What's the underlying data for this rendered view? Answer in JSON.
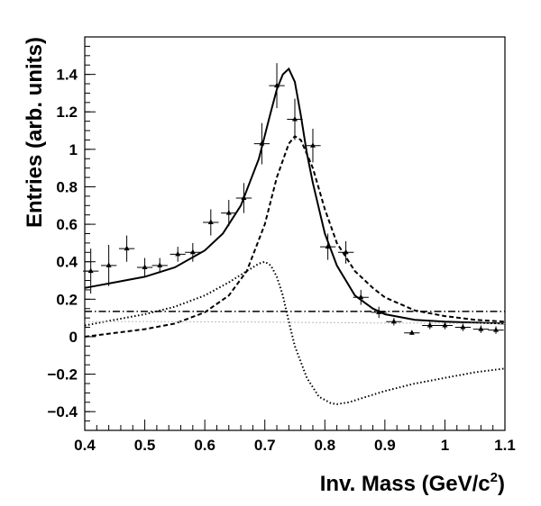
{
  "chart_data": {
    "type": "scatter",
    "title": "",
    "xlabel_main": "Inv. Mass (GeV/c",
    "xlabel_sup": "2",
    "xlabel_close": ")",
    "ylabel": "Entries (arb. units)",
    "xlim": [
      0.4,
      1.1
    ],
    "ylim": [
      -0.5,
      1.6
    ],
    "x_ticks": [
      0.4,
      0.5,
      0.6,
      0.7,
      0.8,
      0.9,
      1.0,
      1.1
    ],
    "x_tick_labels": [
      "0.4",
      "0.5",
      "0.6",
      "0.7",
      "0.8",
      "0.9",
      "1",
      "1.1"
    ],
    "y_ticks": [
      -0.4,
      -0.2,
      0,
      0.2,
      0.4,
      0.6,
      0.8,
      1.0,
      1.2,
      1.4
    ],
    "y_tick_labels": [
      "−0.4",
      "−0.2",
      "0",
      "0.2",
      "0.4",
      "0.6",
      "0.8",
      "1",
      "1.2",
      "1.4"
    ],
    "grid": false,
    "legend": "none",
    "data_points": [
      {
        "x": 0.41,
        "y": 0.35,
        "xerr": 0.013,
        "yerr": 0.12
      },
      {
        "x": 0.44,
        "y": 0.38,
        "xerr": 0.013,
        "yerr": 0.11
      },
      {
        "x": 0.47,
        "y": 0.47,
        "xerr": 0.013,
        "yerr": 0.07
      },
      {
        "x": 0.5,
        "y": 0.37,
        "xerr": 0.013,
        "yerr": 0.05
      },
      {
        "x": 0.525,
        "y": 0.38,
        "xerr": 0.013,
        "yerr": 0.04
      },
      {
        "x": 0.555,
        "y": 0.44,
        "xerr": 0.013,
        "yerr": 0.04
      },
      {
        "x": 0.58,
        "y": 0.45,
        "xerr": 0.013,
        "yerr": 0.05
      },
      {
        "x": 0.61,
        "y": 0.61,
        "xerr": 0.013,
        "yerr": 0.07
      },
      {
        "x": 0.64,
        "y": 0.66,
        "xerr": 0.013,
        "yerr": 0.07
      },
      {
        "x": 0.665,
        "y": 0.74,
        "xerr": 0.013,
        "yerr": 0.08
      },
      {
        "x": 0.695,
        "y": 1.03,
        "xerr": 0.013,
        "yerr": 0.11
      },
      {
        "x": 0.72,
        "y": 1.34,
        "xerr": 0.013,
        "yerr": 0.12
      },
      {
        "x": 0.75,
        "y": 1.16,
        "xerr": 0.013,
        "yerr": 0.11
      },
      {
        "x": 0.78,
        "y": 1.02,
        "xerr": 0.013,
        "yerr": 0.09
      },
      {
        "x": 0.805,
        "y": 0.48,
        "xerr": 0.013,
        "yerr": 0.07
      },
      {
        "x": 0.835,
        "y": 0.45,
        "xerr": 0.013,
        "yerr": 0.06
      },
      {
        "x": 0.86,
        "y": 0.21,
        "xerr": 0.013,
        "yerr": 0.04
      },
      {
        "x": 0.89,
        "y": 0.13,
        "xerr": 0.013,
        "yerr": 0.03
      },
      {
        "x": 0.915,
        "y": 0.08,
        "xerr": 0.013,
        "yerr": 0.02
      },
      {
        "x": 0.945,
        "y": 0.02,
        "xerr": 0.013,
        "yerr": 0.01
      },
      {
        "x": 0.975,
        "y": 0.06,
        "xerr": 0.013,
        "yerr": 0.02
      },
      {
        "x": 1.0,
        "y": 0.06,
        "xerr": 0.013,
        "yerr": 0.02
      },
      {
        "x": 1.03,
        "y": 0.05,
        "xerr": 0.013,
        "yerr": 0.02
      },
      {
        "x": 1.06,
        "y": 0.04,
        "xerr": 0.013,
        "yerr": 0.02
      },
      {
        "x": 1.085,
        "y": 0.035,
        "xerr": 0.013,
        "yerr": 0.02
      }
    ],
    "curves": [
      {
        "style": "solid",
        "x": [
          0.4,
          0.45,
          0.5,
          0.55,
          0.6,
          0.63,
          0.66,
          0.69,
          0.71,
          0.72,
          0.73,
          0.74,
          0.75,
          0.76,
          0.77,
          0.78,
          0.8,
          0.82,
          0.85,
          0.88,
          0.9,
          0.95,
          1.0,
          1.05,
          1.1
        ],
        "y": [
          0.26,
          0.29,
          0.32,
          0.37,
          0.46,
          0.55,
          0.7,
          0.95,
          1.2,
          1.32,
          1.4,
          1.43,
          1.36,
          1.18,
          0.98,
          0.82,
          0.55,
          0.38,
          0.22,
          0.15,
          0.12,
          0.09,
          0.08,
          0.075,
          0.07
        ]
      },
      {
        "style": "dashed",
        "x": [
          0.4,
          0.45,
          0.5,
          0.55,
          0.6,
          0.64,
          0.67,
          0.7,
          0.72,
          0.74,
          0.75,
          0.76,
          0.78,
          0.8,
          0.82,
          0.85,
          0.88,
          0.9,
          0.95,
          1.0,
          1.05,
          1.1
        ],
        "y": [
          0.0,
          0.02,
          0.04,
          0.07,
          0.13,
          0.22,
          0.35,
          0.6,
          0.85,
          1.03,
          1.07,
          1.05,
          0.9,
          0.68,
          0.5,
          0.35,
          0.26,
          0.21,
          0.14,
          0.11,
          0.09,
          0.08
        ]
      },
      {
        "style": "dotted",
        "x": [
          0.4,
          0.45,
          0.5,
          0.55,
          0.6,
          0.64,
          0.67,
          0.69,
          0.7,
          0.71,
          0.72,
          0.73,
          0.74,
          0.75,
          0.77,
          0.79,
          0.81,
          0.82,
          0.84,
          0.87,
          0.9,
          0.95,
          1.0,
          1.05,
          1.1
        ],
        "y": [
          0.06,
          0.09,
          0.12,
          0.16,
          0.22,
          0.29,
          0.35,
          0.39,
          0.4,
          0.38,
          0.32,
          0.22,
          0.08,
          -0.05,
          -0.22,
          -0.32,
          -0.355,
          -0.36,
          -0.35,
          -0.32,
          -0.29,
          -0.25,
          -0.22,
          -0.19,
          -0.17
        ]
      },
      {
        "style": "dashdot",
        "x": [
          0.4,
          1.1
        ],
        "y": [
          0.135,
          0.135
        ]
      },
      {
        "style": "faint",
        "x": [
          0.4,
          0.5,
          0.6,
          0.7,
          0.8,
          0.9,
          1.0,
          1.1
        ],
        "y": [
          0.08,
          0.081,
          0.079,
          0.078,
          0.075,
          0.073,
          0.072,
          0.07
        ]
      }
    ]
  }
}
